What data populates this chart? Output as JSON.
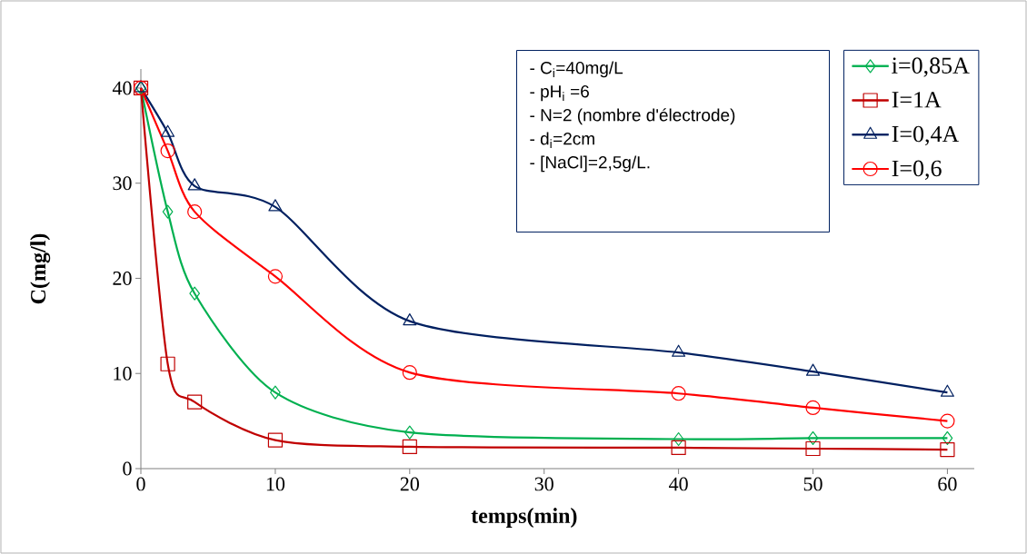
{
  "chart_data": {
    "type": "line",
    "xlabel": "temps(min)",
    "ylabel": "C(mg/l)",
    "annotations": [
      "- C$_{i}$=40mg/L",
      "- pH$_{i}$ =6",
      "- N=2 (nombre d'électrode)",
      "- d$_{i}$=2cm",
      "- [NaCl]=2,5g/L."
    ],
    "x": [
      0,
      2,
      4,
      10,
      20,
      40,
      50,
      60
    ],
    "series": [
      {
        "name": "i=0,85A",
        "color": "#00b050",
        "marker": "diamond",
        "values": [
          40,
          27,
          18.4,
          8,
          3.8,
          3.1,
          3.2,
          3.2
        ]
      },
      {
        "name": "I=1A",
        "color": "#c00000",
        "marker": "square",
        "values": [
          40,
          11,
          7,
          3,
          2.3,
          2.2,
          2.1,
          2.0
        ]
      },
      {
        "name": "I=0,4A",
        "color": "#002060",
        "marker": "triangle",
        "values": [
          40,
          35.3,
          29.7,
          27.5,
          15.5,
          12.2,
          10.2,
          8.0
        ]
      },
      {
        "name": "I=0,6",
        "color": "#ff0000",
        "marker": "circle",
        "values": [
          40,
          33.4,
          27,
          20.2,
          10.1,
          7.9,
          6.4,
          5.0
        ]
      }
    ],
    "xlim": [
      0,
      62
    ],
    "ylim": [
      0,
      42
    ],
    "xticks": [
      0,
      10,
      20,
      30,
      40,
      50,
      60
    ],
    "yticks": [
      0,
      10,
      20,
      30,
      40
    ],
    "grid": false,
    "legend": "top right"
  }
}
